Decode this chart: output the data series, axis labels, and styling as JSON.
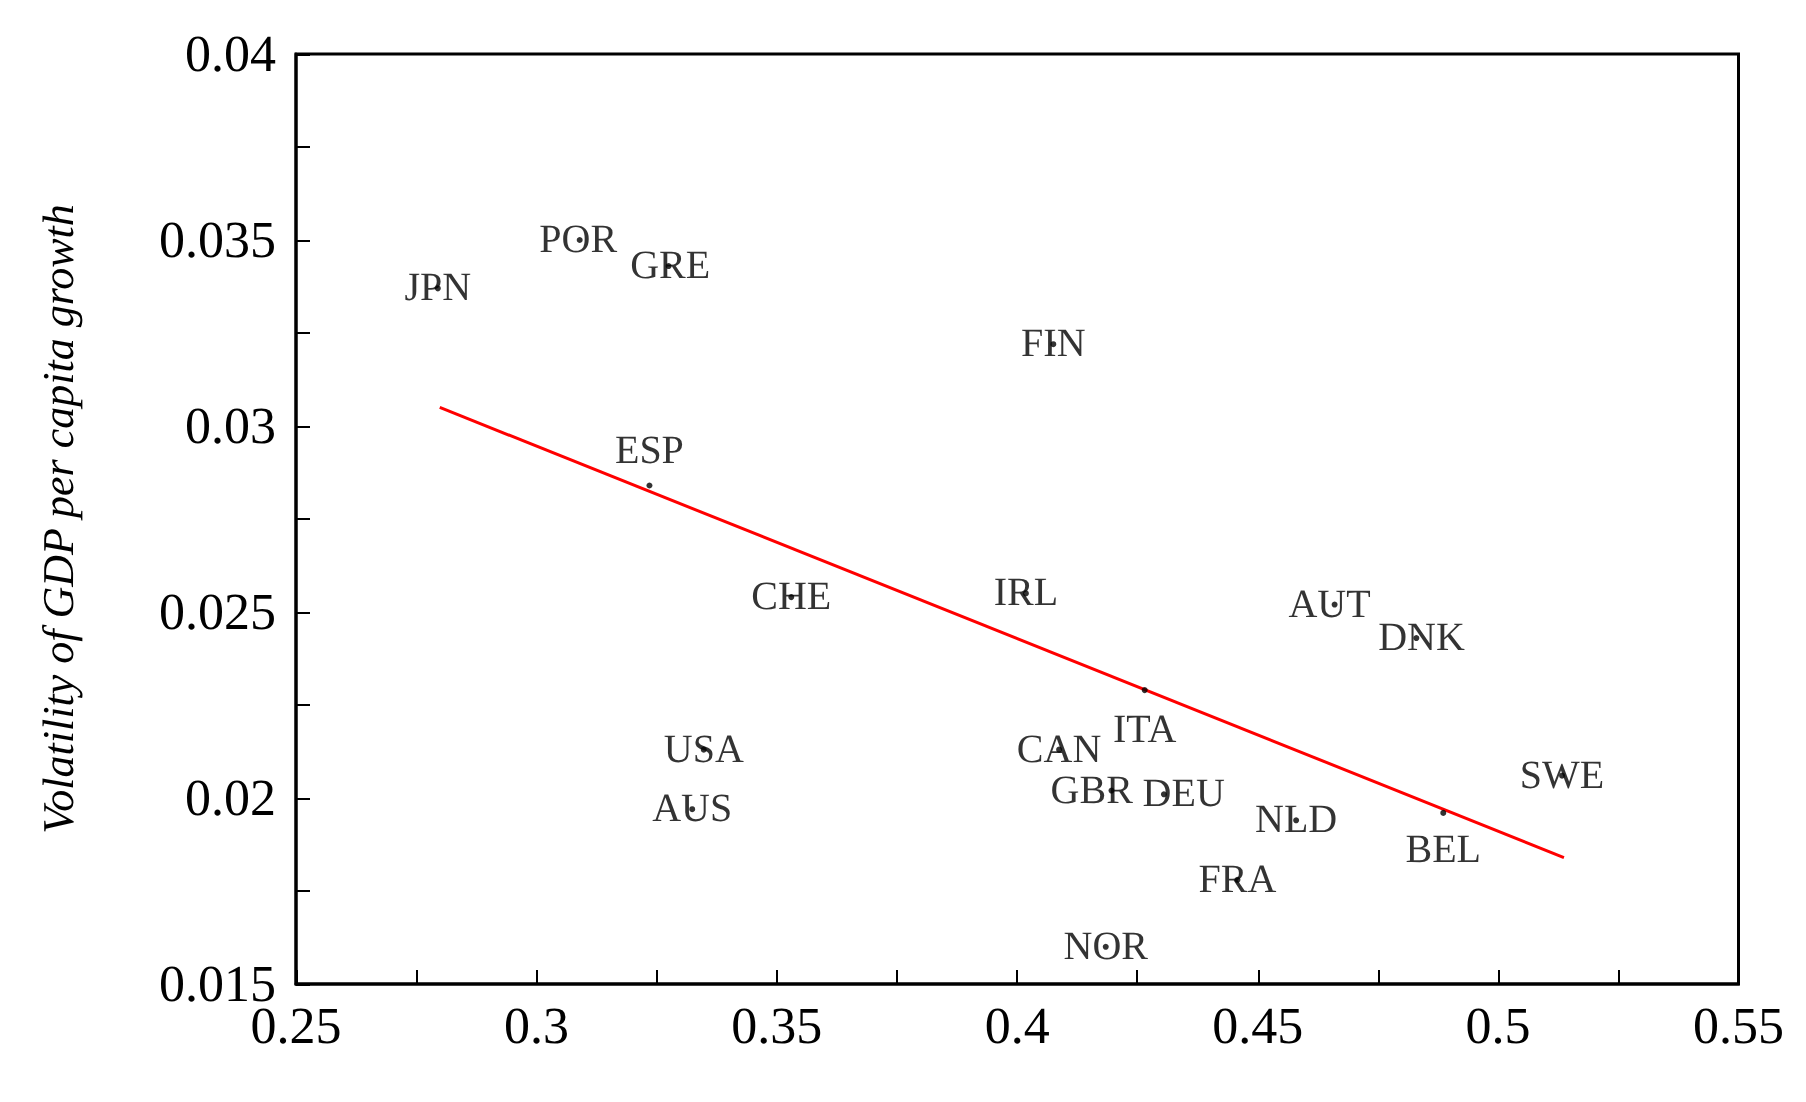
{
  "chart_data": {
    "type": "scatter",
    "ylabel": "Volatility of GDP per capita growth",
    "xlim": [
      0.25,
      0.55
    ],
    "xticks": [
      0.25,
      {
        "value": 0.275,
        "label": null
      },
      0.3,
      {
        "value": 0.325,
        "label": null
      },
      0.35,
      {
        "value": 0.375,
        "label": null
      },
      0.4,
      {
        "value": 0.425,
        "label": null
      },
      0.45,
      {
        "value": 0.475,
        "label": null
      },
      0.5,
      {
        "value": 0.525,
        "label": null
      },
      0.55
    ],
    "ylim": [
      0.015,
      0.04
    ],
    "yticks": [
      0.015,
      {
        "value": 0.0175,
        "label": null
      },
      0.02,
      {
        "value": 0.0225,
        "label": null
      },
      0.025,
      {
        "value": 0.0275,
        "label": null
      },
      0.03,
      {
        "value": 0.0325,
        "label": null
      },
      0.035,
      {
        "value": 0.0375,
        "label": null
      },
      0.04
    ],
    "series": [
      {
        "type": "scatter",
        "marker": "circle",
        "color": "#000000",
        "x": [
          0.2795,
          0.309,
          0.3275,
          0.4075,
          0.3235,
          0.353,
          0.4018,
          0.466,
          0.483,
          0.4265,
          0.3348,
          0.4087,
          0.5133,
          0.3324,
          0.4196,
          0.4305,
          0.458,
          0.4886,
          0.4458,
          0.4184
        ],
        "values": [
          0.0337,
          0.035,
          0.0343,
          0.0322,
          0.0284,
          0.0254,
          0.0255,
          0.0252,
          0.0243,
          0.0229,
          0.0213,
          0.0213,
          0.0206,
          0.0197,
          0.0202,
          0.0201,
          0.0194,
          0.0196,
          0.0178,
          0.016
        ]
      },
      {
        "type": "line",
        "marker": "none",
        "color": "#ff0000",
        "x": [
          0.2799,
          0.5137
        ],
        "values": [
          0.0305,
          0.0184
        ]
      }
    ],
    "annotations": [
      {
        "text": "JPN",
        "x": 0.2795,
        "y": 0.0337
      },
      {
        "text": "POR",
        "x": 0.309,
        "y": 0.035
      },
      {
        "text": "GRE",
        "x": 0.3275,
        "y": 0.0343
      },
      {
        "text": "FIN",
        "x": 0.4075,
        "y": 0.0322
      },
      {
        "text": "ESP",
        "x": 0.3235,
        "y": 0.0284
      },
      {
        "text": "CHE",
        "x": 0.353,
        "y": 0.0254
      },
      {
        "text": "IRL",
        "x": 0.4018,
        "y": 0.0255
      },
      {
        "text": "AUT",
        "x": 0.466,
        "y": 0.0252
      },
      {
        "text": "DNK",
        "x": 0.483,
        "y": 0.0243
      },
      {
        "text": "ITA",
        "x": 0.4265,
        "y": 0.0229
      },
      {
        "text": "USA",
        "x": 0.3348,
        "y": 0.0213
      },
      {
        "text": "CAN",
        "x": 0.4087,
        "y": 0.0213
      },
      {
        "text": "SWE",
        "x": 0.5133,
        "y": 0.0206
      },
      {
        "text": "AUS",
        "x": 0.3324,
        "y": 0.0197
      },
      {
        "text": "GBR",
        "x": 0.4196,
        "y": 0.0202
      },
      {
        "text": "DEU",
        "x": 0.4305,
        "y": 0.0201
      },
      {
        "text": "NLD",
        "x": 0.458,
        "y": 0.0194
      },
      {
        "text": "BEL",
        "x": 0.4886,
        "y": 0.0196
      },
      {
        "text": "FRA",
        "x": 0.4458,
        "y": 0.0178
      },
      {
        "text": "NOR",
        "x": 0.4184,
        "y": 0.016
      }
    ]
  }
}
